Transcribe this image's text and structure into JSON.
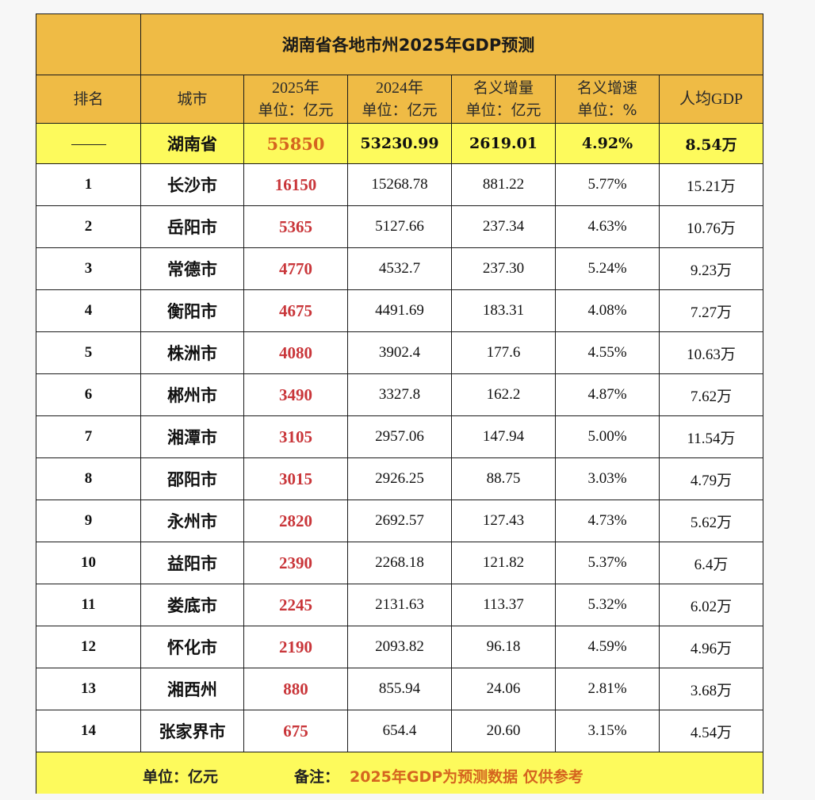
{
  "title": "湖南省各地市州2025年GDP预测",
  "headers": {
    "rank": "排名",
    "city": "城市",
    "gdp2025": {
      "line1": "2025年",
      "line2": "单位：亿元"
    },
    "gdp2024": {
      "line1": "2024年",
      "line2": "单位：亿元"
    },
    "nominal_increase": {
      "line1": "名义增量",
      "line2": "单位：亿元"
    },
    "nominal_growth": {
      "line1": "名义增速",
      "line2": "单位：%"
    },
    "per_capita": "人均GDP"
  },
  "total": {
    "rank": "——",
    "city": "湖南省",
    "gdp2025": "55850",
    "gdp2024": "53230.99",
    "increase": "2619.01",
    "growth": "4.92%",
    "per_capita": "8.54万"
  },
  "rows": [
    {
      "rank": "1",
      "city": "长沙市",
      "gdp2025": "16150",
      "gdp2024": "15268.78",
      "increase": "881.22",
      "growth": "5.77%",
      "per_capita": "15.21万"
    },
    {
      "rank": "2",
      "city": "岳阳市",
      "gdp2025": "5365",
      "gdp2024": "5127.66",
      "increase": "237.34",
      "growth": "4.63%",
      "per_capita": "10.76万"
    },
    {
      "rank": "3",
      "city": "常德市",
      "gdp2025": "4770",
      "gdp2024": "4532.7",
      "increase": "237.30",
      "growth": "5.24%",
      "per_capita": "9.23万"
    },
    {
      "rank": "4",
      "city": "衡阳市",
      "gdp2025": "4675",
      "gdp2024": "4491.69",
      "increase": "183.31",
      "growth": "4.08%",
      "per_capita": "7.27万"
    },
    {
      "rank": "5",
      "city": "株洲市",
      "gdp2025": "4080",
      "gdp2024": "3902.4",
      "increase": "177.6",
      "growth": "4.55%",
      "per_capita": "10.63万"
    },
    {
      "rank": "6",
      "city": "郴州市",
      "gdp2025": "3490",
      "gdp2024": "3327.8",
      "increase": "162.2",
      "growth": "4.87%",
      "per_capita": "7.62万"
    },
    {
      "rank": "7",
      "city": "湘潭市",
      "gdp2025": "3105",
      "gdp2024": "2957.06",
      "increase": "147.94",
      "growth": "5.00%",
      "per_capita": "11.54万"
    },
    {
      "rank": "8",
      "city": "邵阳市",
      "gdp2025": "3015",
      "gdp2024": "2926.25",
      "increase": "88.75",
      "growth": "3.03%",
      "per_capita": "4.79万"
    },
    {
      "rank": "9",
      "city": "永州市",
      "gdp2025": "2820",
      "gdp2024": "2692.57",
      "increase": "127.43",
      "growth": "4.73%",
      "per_capita": "5.62万"
    },
    {
      "rank": "10",
      "city": "益阳市",
      "gdp2025": "2390",
      "gdp2024": "2268.18",
      "increase": "121.82",
      "growth": "5.37%",
      "per_capita": "6.4万"
    },
    {
      "rank": "11",
      "city": "娄底市",
      "gdp2025": "2245",
      "gdp2024": "2131.63",
      "increase": "113.37",
      "growth": "5.32%",
      "per_capita": "6.02万"
    },
    {
      "rank": "12",
      "city": "怀化市",
      "gdp2025": "2190",
      "gdp2024": "2093.82",
      "increase": "96.18",
      "growth": "4.59%",
      "per_capita": "4.96万"
    },
    {
      "rank": "13",
      "city": "湘西州",
      "gdp2025": "880",
      "gdp2024": "855.94",
      "increase": "24.06",
      "growth": "2.81%",
      "per_capita": "3.68万"
    },
    {
      "rank": "14",
      "city": "张家界市",
      "gdp2025": "675",
      "gdp2024": "654.4",
      "increase": "20.60",
      "growth": "3.15%",
      "per_capita": "4.54万"
    }
  ],
  "footer": {
    "unit": "单位：亿元",
    "note_label": "备注：",
    "note_text": "2025年GDP为预测数据 仅供参考"
  },
  "colors": {
    "header_bg": "#efbb45",
    "highlight_bg": "#fdfa5c",
    "gdp2025_text": "#c9363a",
    "total_gdp2025_text": "#d5651f",
    "note_text": "#d5651f"
  }
}
